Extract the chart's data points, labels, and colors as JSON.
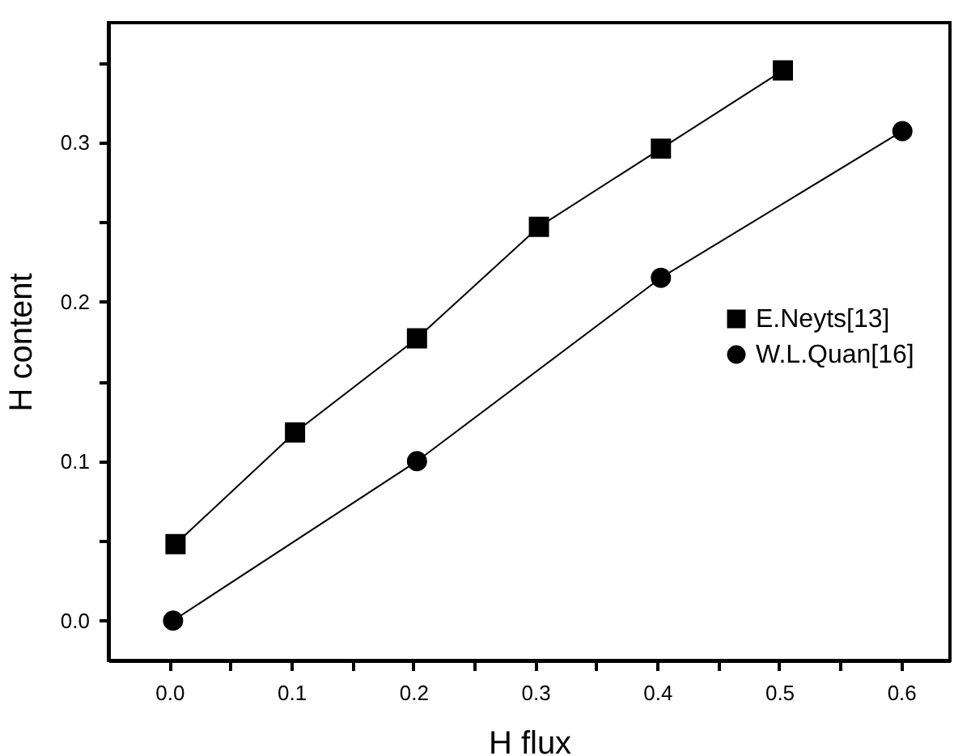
{
  "chart_data": {
    "type": "line",
    "xlabel": "H flux",
    "ylabel": "H content",
    "xlim": [
      -0.05,
      0.64
    ],
    "ylim": [
      -0.025,
      0.375
    ],
    "xticks": [
      {
        "value": 0,
        "label": "0.0"
      },
      {
        "value": 0.05,
        "label": null
      },
      0.1,
      {
        "value": 0.15,
        "label": null
      },
      0.2,
      {
        "value": 0.25,
        "label": null
      },
      0.3,
      {
        "value": 0.35,
        "label": null
      },
      0.4,
      {
        "value": 0.45,
        "label": null
      },
      0.5,
      {
        "value": 0.55,
        "label": null
      },
      0.6
    ],
    "yticks": [
      {
        "value": 0,
        "label": "0.0"
      },
      {
        "value": 0.05,
        "label": null
      },
      0.1,
      {
        "value": 0.15,
        "label": null
      },
      0.2,
      {
        "value": 0.25,
        "label": null
      },
      0.3,
      {
        "value": 0.35,
        "label": null
      }
    ],
    "grid": false,
    "legend": "right",
    "line_style": "solid",
    "series": [
      {
        "name": "E.Neyts[13]",
        "color": "#000000",
        "marker": "square",
        "x": [
          0.005,
          0.103,
          0.203,
          0.303,
          0.403,
          0.503
        ],
        "values": [
          0.048,
          0.118,
          0.177,
          0.247,
          0.296,
          0.345
        ]
      },
      {
        "name": "W.L.Quan[16]",
        "color": "#000000",
        "marker": "circle",
        "x": [
          0.003,
          0.203,
          0.403,
          0.601
        ],
        "values": [
          0.0,
          0.1,
          0.215,
          0.307
        ]
      }
    ]
  }
}
